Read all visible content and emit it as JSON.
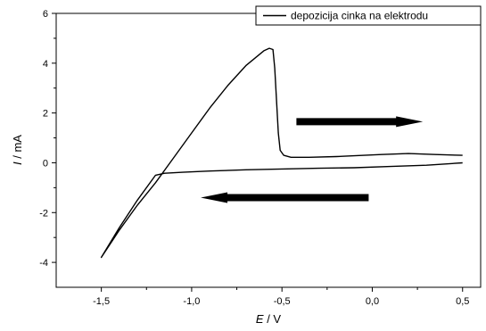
{
  "chart_data": {
    "type": "line",
    "title": "",
    "xlabel": {
      "italic": "E",
      "rest": " / V"
    },
    "ylabel": {
      "italic": "I",
      "rest": " / mA"
    },
    "xlim": [
      -1.75,
      0.6
    ],
    "ylim": [
      -5,
      6
    ],
    "x_ticks": [
      -1.5,
      -1.0,
      -0.5,
      0.0,
      0.5
    ],
    "x_tick_labels": [
      "-1,5",
      "-1,0",
      "-0,5",
      "0,0",
      "0,5"
    ],
    "y_ticks": [
      -4,
      -2,
      0,
      2,
      4,
      6
    ],
    "y_tick_labels": [
      "-4",
      "-2",
      "0",
      "2",
      "4",
      "6"
    ],
    "grid": false,
    "legend_position": "top-right",
    "series": [
      {
        "name": "depozicija cinka na elektrodu",
        "color": "#000000",
        "x": [
          0.5,
          0.3,
          0.1,
          -0.1,
          -0.3,
          -0.5,
          -0.7,
          -0.9,
          -1.05,
          -1.15,
          -1.2,
          -1.3,
          -1.4,
          -1.5,
          -1.4,
          -1.3,
          -1.2,
          -1.1,
          -1.0,
          -0.9,
          -0.8,
          -0.7,
          -0.6,
          -0.57,
          -0.55,
          -0.54,
          -0.53,
          -0.52,
          -0.51,
          -0.49,
          -0.45,
          -0.35,
          -0.2,
          -0.1,
          0.05,
          0.2,
          0.35,
          0.5
        ],
        "y": [
          0.0,
          -0.1,
          -0.15,
          -0.2,
          -0.22,
          -0.25,
          -0.28,
          -0.33,
          -0.38,
          -0.42,
          -0.5,
          -1.5,
          -2.6,
          -3.8,
          -2.7,
          -1.7,
          -0.8,
          0.2,
          1.2,
          2.2,
          3.1,
          3.9,
          4.5,
          4.6,
          4.55,
          3.8,
          2.5,
          1.2,
          0.5,
          0.3,
          0.22,
          0.22,
          0.25,
          0.28,
          0.33,
          0.37,
          0.33,
          0.3
        ]
      }
    ],
    "arrows": [
      {
        "x_from": -0.42,
        "x_to": 0.28,
        "y": 1.65
      },
      {
        "x_from": -0.02,
        "x_to": -0.95,
        "y": -1.4
      }
    ]
  }
}
